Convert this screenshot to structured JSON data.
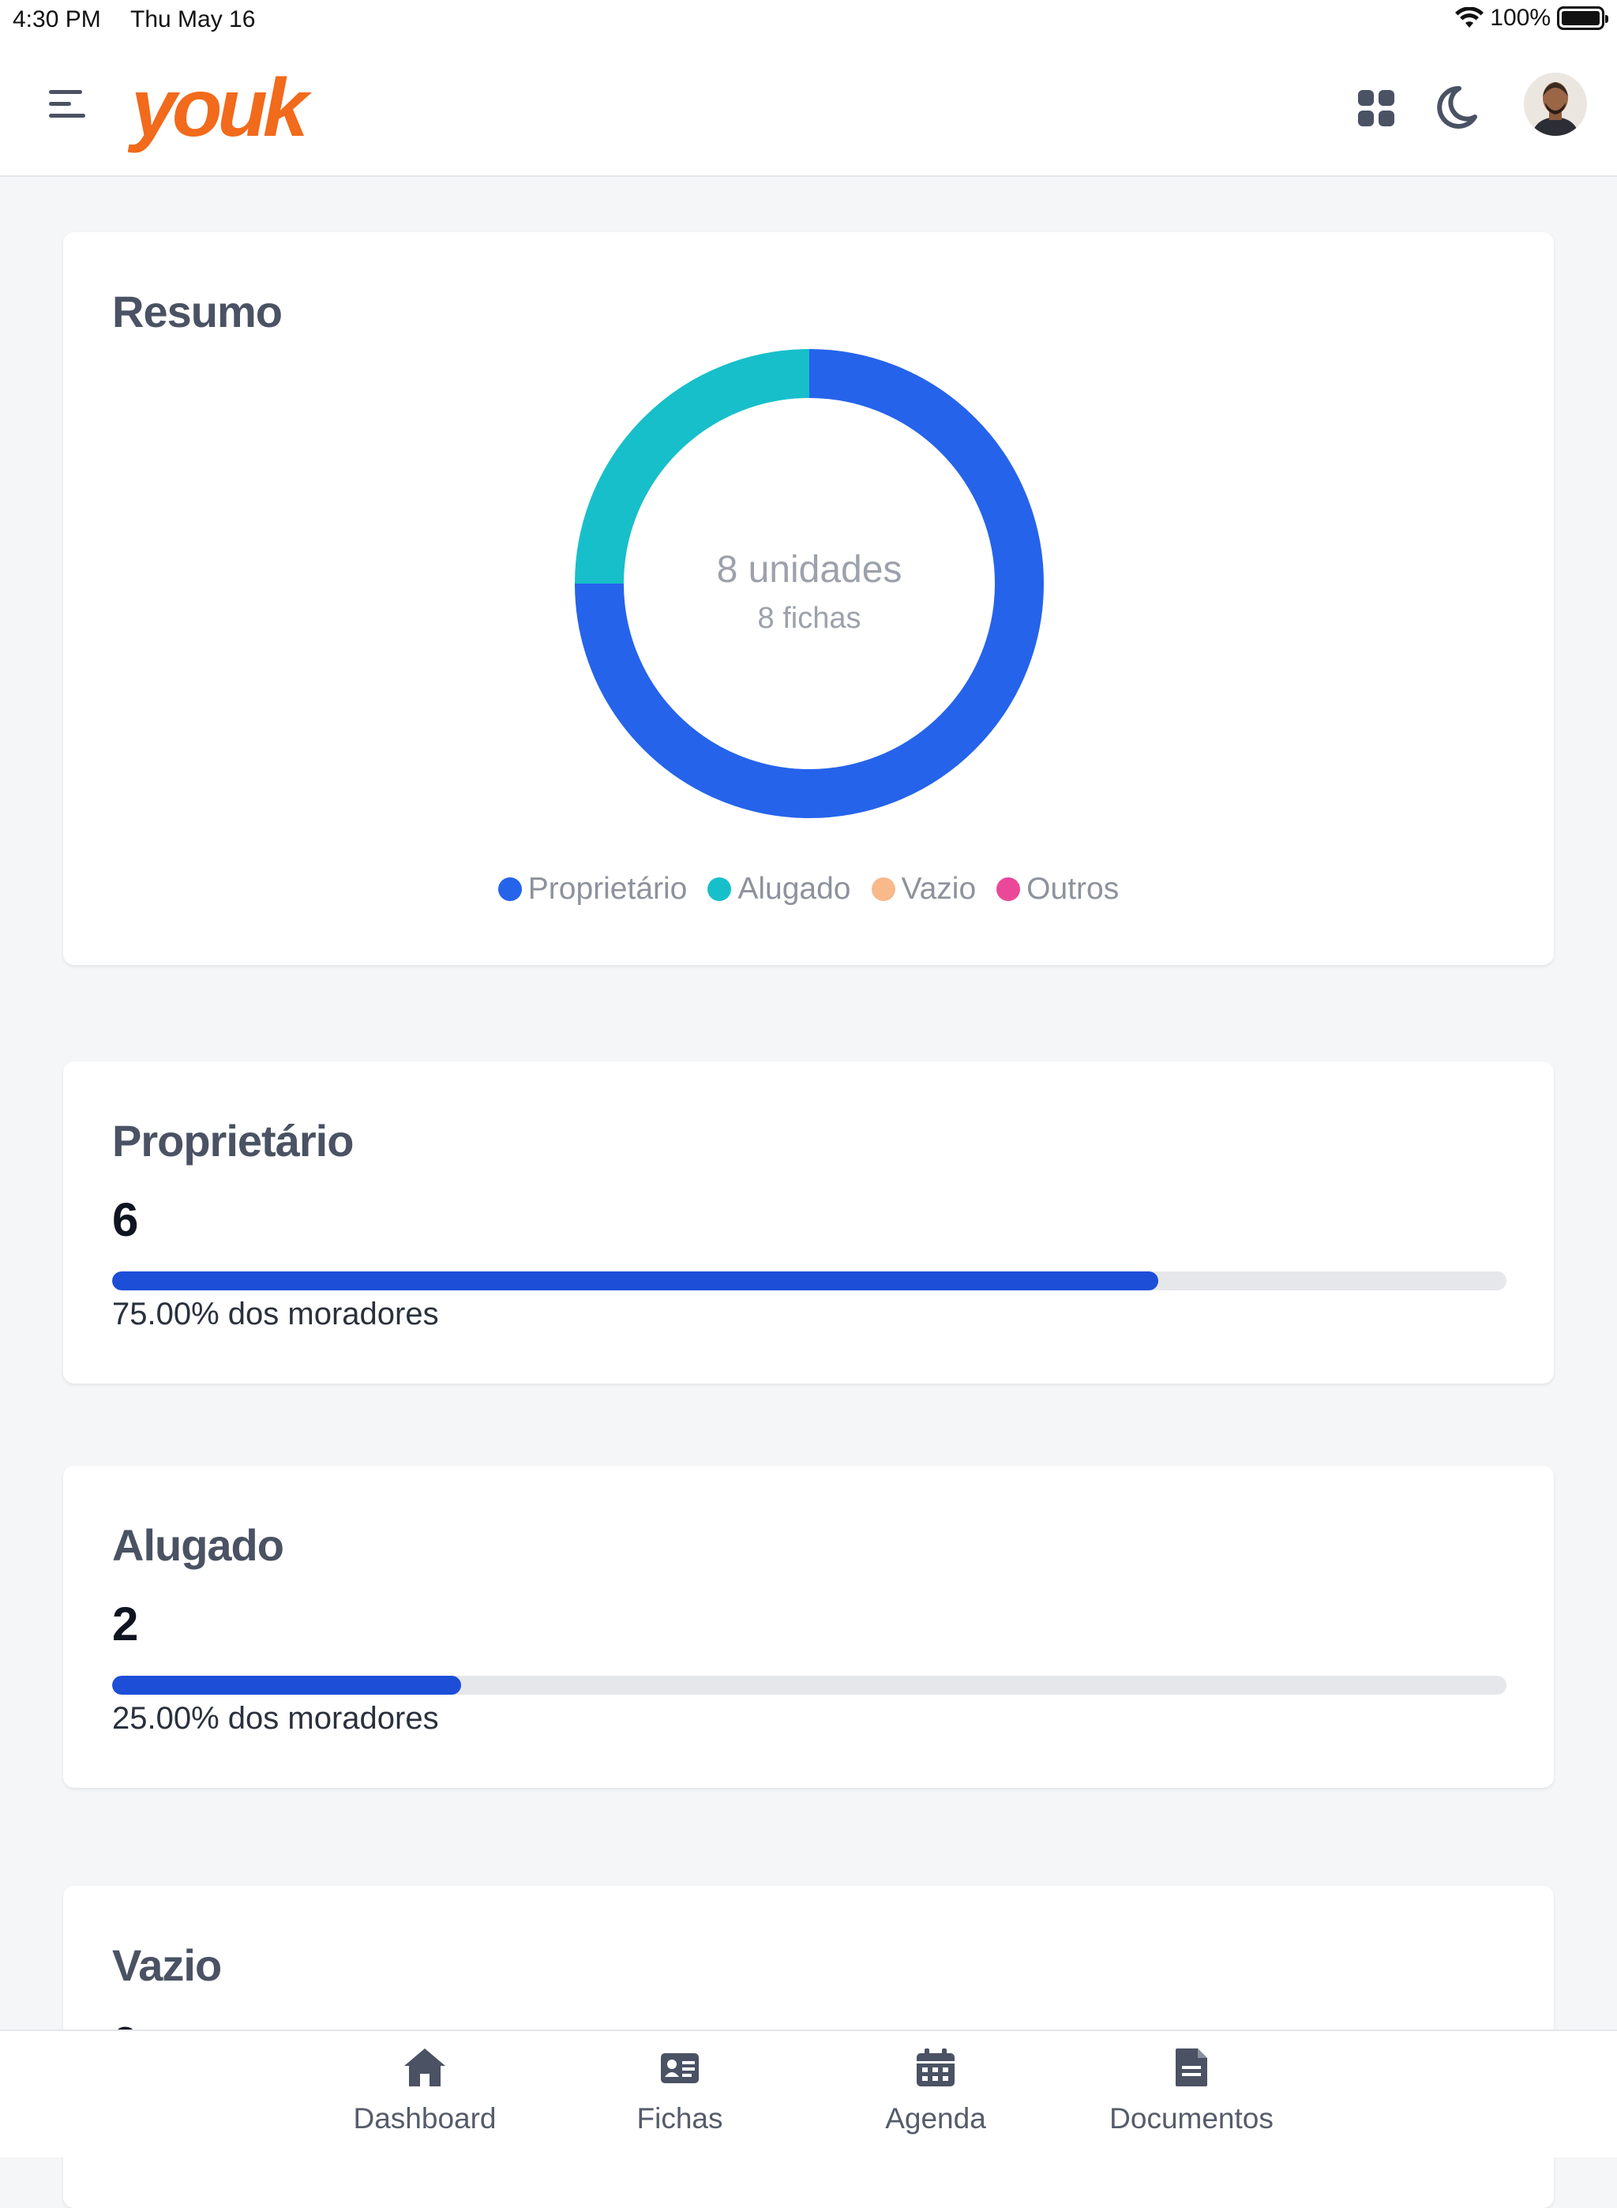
{
  "status_bar": {
    "time": "4:30 PM",
    "date": "Thu May 16",
    "battery": "100%"
  },
  "header": {
    "logo_text": "youk",
    "brand_color": "#f26a1b"
  },
  "resumo": {
    "title": "Resumo",
    "center_main": "8 unidades",
    "center_sub": "8 fichas",
    "legend": [
      {
        "label": "Proprietário",
        "color": "#2563eb"
      },
      {
        "label": "Alugado",
        "color": "#17bfca"
      },
      {
        "label": "Vazio",
        "color": "#f9b98a"
      },
      {
        "label": "Outros",
        "color": "#ec4899"
      }
    ]
  },
  "chart_data": {
    "type": "pie",
    "categories": [
      "Proprietário",
      "Alugado",
      "Vazio",
      "Outros"
    ],
    "values": [
      6,
      2,
      0,
      0
    ],
    "title": "Resumo",
    "legend_position": "bottom"
  },
  "stats": [
    {
      "title": "Proprietário",
      "value": "6",
      "fraction": 0.75,
      "subtitle": "75.00% dos moradores"
    },
    {
      "title": "Alugado",
      "value": "2",
      "fraction": 0.25,
      "subtitle": "25.00% dos moradores"
    },
    {
      "title": "Vazio",
      "value": "0",
      "fraction": 0,
      "subtitle": ""
    }
  ],
  "tabs": [
    {
      "label": "Dashboard",
      "icon": "home-icon"
    },
    {
      "label": "Fichas",
      "icon": "id-card-icon"
    },
    {
      "label": "Agenda",
      "icon": "calendar-icon"
    },
    {
      "label": "Documentos",
      "icon": "document-icon"
    }
  ]
}
